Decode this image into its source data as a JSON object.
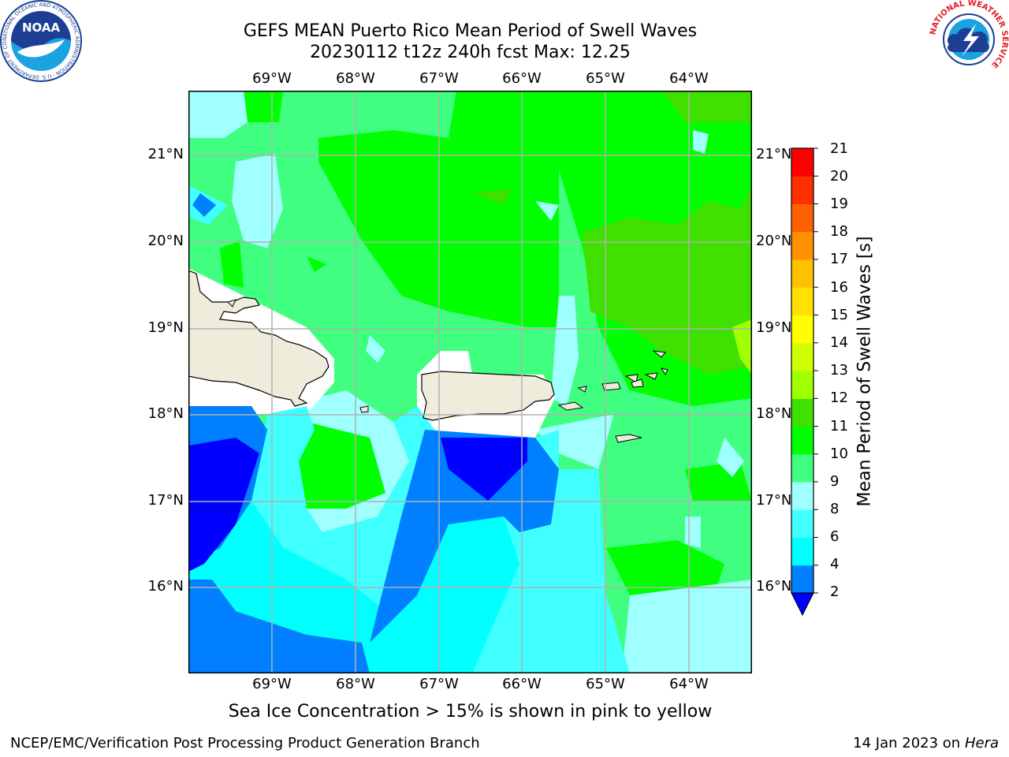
{
  "title": "GEFS MEAN Puerto Rico Mean Period of Swell Waves",
  "subtitle": "20230112 t12z 240h fcst   Max: 12.25",
  "map": {
    "lon_labels": [
      "69°W",
      "68°W",
      "67°W",
      "66°W",
      "65°W",
      "64°W"
    ],
    "lat_labels": [
      "21°N",
      "20°N",
      "19°N",
      "18°N",
      "17°N",
      "16°N"
    ],
    "lon_range": [
      -70.0,
      -63.25
    ],
    "lat_range": [
      15.0,
      21.75
    ],
    "grid": true
  },
  "colorbar": {
    "label": "Mean Period of Swell Waves [s]",
    "ticks": [
      "21",
      "20",
      "19",
      "18",
      "17",
      "16",
      "15",
      "14",
      "13",
      "12",
      "11",
      "10",
      "9",
      "8",
      "6",
      "4",
      "2"
    ],
    "colors": [
      "#0000ff",
      "#0080ff",
      "#00ffff",
      "#40ffff",
      "#a0ffff",
      "#40ff80",
      "#00ff00",
      "#40e000",
      "#a0ff00",
      "#d0ff00",
      "#ffff00",
      "#ffe000",
      "#ffc000",
      "#ff9000",
      "#ff6000",
      "#ff3000",
      "#ff0000"
    ]
  },
  "note": "Sea Ice Concentration > 15% is shown in pink to yellow",
  "footer": {
    "left": "NCEP/EMC/Verification Post Processing Product Generation Branch",
    "date": "14 Jan 2023 on ",
    "machine": "Hera"
  },
  "logos": {
    "noaa_text": "NOAA",
    "noaa_ring": "NATIONAL OCEANIC AND ATMOSPHERIC ADMINISTRATION · U.S. DEPARTMENT OF COMMERCE",
    "nws_ring": "NATIONAL WEATHER SERVICE"
  }
}
